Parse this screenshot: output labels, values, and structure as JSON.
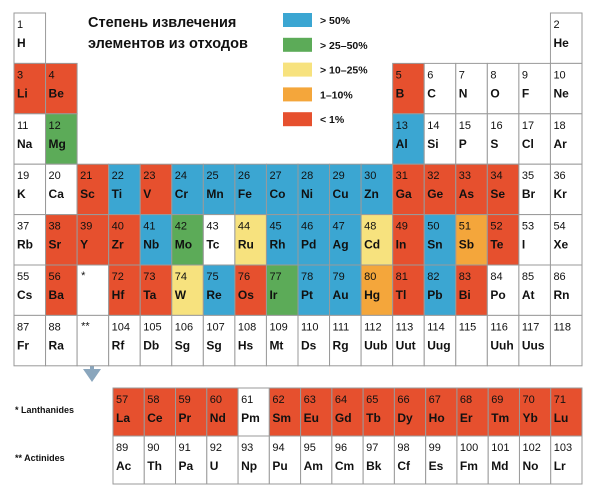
{
  "title": [
    "Степень извлечения",
    "элементов из отходов"
  ],
  "legend": [
    {
      "label": "> 50%",
      "color": "#3ba6d2"
    },
    {
      "label": "> 25–50%",
      "color": "#5cab58"
    },
    {
      "label": "> 10–25%",
      "color": "#f7e27e"
    },
    {
      "label": "1–10%",
      "color": "#f4a63b"
    },
    {
      "label": "< 1%",
      "color": "#e6502e"
    }
  ],
  "table": {
    "rows": [
      [
        {
          "number": 1,
          "symbol": "H"
        },
        null,
        null,
        null,
        null,
        null,
        null,
        null,
        null,
        null,
        null,
        null,
        null,
        null,
        null,
        null,
        null,
        {
          "number": 2,
          "symbol": "He"
        }
      ],
      [
        {
          "number": 3,
          "symbol": "Li",
          "level": 4
        },
        {
          "number": 4,
          "symbol": "Be",
          "level": 4
        },
        null,
        null,
        null,
        null,
        null,
        null,
        null,
        null,
        null,
        null,
        {
          "number": 5,
          "symbol": "B",
          "level": 4
        },
        {
          "number": 6,
          "symbol": "C"
        },
        {
          "number": 7,
          "symbol": "N"
        },
        {
          "number": 8,
          "symbol": "O"
        },
        {
          "number": 9,
          "symbol": "F"
        },
        {
          "number": 10,
          "symbol": "Ne"
        }
      ],
      [
        {
          "number": 11,
          "symbol": "Na"
        },
        {
          "number": 12,
          "symbol": "Mg",
          "level": 1
        },
        null,
        null,
        null,
        null,
        null,
        null,
        null,
        null,
        null,
        null,
        {
          "number": 13,
          "symbol": "Al",
          "level": 0
        },
        {
          "number": 14,
          "symbol": "Si"
        },
        {
          "number": 15,
          "symbol": "P"
        },
        {
          "number": 16,
          "symbol": "S"
        },
        {
          "number": 17,
          "symbol": "Cl"
        },
        {
          "number": 18,
          "symbol": "Ar"
        }
      ],
      [
        {
          "number": 19,
          "symbol": "K"
        },
        {
          "number": 20,
          "symbol": "Ca"
        },
        {
          "number": 21,
          "symbol": "Sc",
          "level": 4
        },
        {
          "number": 22,
          "symbol": "Ti",
          "level": 0
        },
        {
          "number": 23,
          "symbol": "V",
          "level": 4
        },
        {
          "number": 24,
          "symbol": "Cr",
          "level": 0
        },
        {
          "number": 25,
          "symbol": "Mn",
          "level": 0
        },
        {
          "number": 26,
          "symbol": "Fe",
          "level": 0
        },
        {
          "number": 27,
          "symbol": "Co",
          "level": 0
        },
        {
          "number": 28,
          "symbol": "Ni",
          "level": 0
        },
        {
          "number": 29,
          "symbol": "Cu",
          "level": 0
        },
        {
          "number": 30,
          "symbol": "Zn",
          "level": 0
        },
        {
          "number": 31,
          "symbol": "Ga",
          "level": 4
        },
        {
          "number": 32,
          "symbol": "Ge",
          "level": 4
        },
        {
          "number": 33,
          "symbol": "As",
          "level": 4
        },
        {
          "number": 34,
          "symbol": "Se",
          "level": 4
        },
        {
          "number": 35,
          "symbol": "Br"
        },
        {
          "number": 36,
          "symbol": "Kr"
        }
      ],
      [
        {
          "number": 37,
          "symbol": "Rb"
        },
        {
          "number": 38,
          "symbol": "Sr",
          "level": 4
        },
        {
          "number": 39,
          "symbol": "Y",
          "level": 4
        },
        {
          "number": 40,
          "symbol": "Zr",
          "level": 4
        },
        {
          "number": 41,
          "symbol": "Nb",
          "level": 0
        },
        {
          "number": 42,
          "symbol": "Mo",
          "level": 1
        },
        {
          "number": 43,
          "symbol": "Tc"
        },
        {
          "number": 44,
          "symbol": "Ru",
          "level": 2
        },
        {
          "number": 45,
          "symbol": "Rh",
          "level": 0
        },
        {
          "number": 46,
          "symbol": "Pd",
          "level": 0
        },
        {
          "number": 47,
          "symbol": "Ag",
          "level": 0
        },
        {
          "number": 48,
          "symbol": "Cd",
          "level": 2
        },
        {
          "number": 49,
          "symbol": "In",
          "level": 4
        },
        {
          "number": 50,
          "symbol": "Sn",
          "level": 0
        },
        {
          "number": 51,
          "symbol": "Sb",
          "level": 3
        },
        {
          "number": 52,
          "symbol": "Te",
          "level": 4
        },
        {
          "number": 53,
          "symbol": "I"
        },
        {
          "number": 54,
          "symbol": "Xe"
        }
      ],
      [
        {
          "number": 55,
          "symbol": "Cs"
        },
        {
          "number": 56,
          "symbol": "Ba",
          "level": 4
        },
        {
          "mark": "*"
        },
        {
          "number": 72,
          "symbol": "Hf",
          "level": 4
        },
        {
          "number": 73,
          "symbol": "Ta",
          "level": 4
        },
        {
          "number": 74,
          "symbol": "W",
          "level": 2
        },
        {
          "number": 75,
          "symbol": "Re",
          "level": 0
        },
        {
          "number": 76,
          "symbol": "Os",
          "level": 4
        },
        {
          "number": 77,
          "symbol": "Ir",
          "level": 1
        },
        {
          "number": 78,
          "symbol": "Pt",
          "level": 0
        },
        {
          "number": 79,
          "symbol": "Au",
          "level": 0
        },
        {
          "number": 80,
          "symbol": "Hg",
          "level": 3
        },
        {
          "number": 81,
          "symbol": "Tl",
          "level": 4
        },
        {
          "number": 82,
          "symbol": "Pb",
          "level": 0
        },
        {
          "number": 83,
          "symbol": "Bi",
          "level": 4
        },
        {
          "number": 84,
          "symbol": "Po"
        },
        {
          "number": 85,
          "symbol": "At"
        },
        {
          "number": 86,
          "symbol": "Rn"
        }
      ],
      [
        {
          "number": 87,
          "symbol": "Fr"
        },
        {
          "number": 88,
          "symbol": "Ra"
        },
        {
          "mark": "**"
        },
        {
          "number": 104,
          "symbol": "Rf"
        },
        {
          "number": 105,
          "symbol": "Db"
        },
        {
          "number": 106,
          "symbol": "Sg"
        },
        {
          "number": 107,
          "symbol": "Sg"
        },
        {
          "number": 108,
          "symbol": "Hs"
        },
        {
          "number": 109,
          "symbol": "Mt"
        },
        {
          "number": 110,
          "symbol": "Ds"
        },
        {
          "number": 111,
          "symbol": "Rg"
        },
        {
          "number": 112,
          "symbol": "Uub"
        },
        {
          "number": 113,
          "symbol": "Uut"
        },
        {
          "number": 114,
          "symbol": "Uug"
        },
        {
          "number": 115
        },
        {
          "number": 116,
          "symbol": "Uuh"
        },
        {
          "number": 117,
          "symbol": "Uus"
        },
        {
          "number": 118
        }
      ]
    ]
  },
  "series": [
    {
      "label": "* Lanthanides",
      "cells": [
        {
          "number": 57,
          "symbol": "La",
          "level": 4
        },
        {
          "number": 58,
          "symbol": "Ce",
          "level": 4
        },
        {
          "number": 59,
          "symbol": "Pr",
          "level": 4
        },
        {
          "number": 60,
          "symbol": "Nd",
          "level": 4
        },
        {
          "number": 61,
          "symbol": "Pm"
        },
        {
          "number": 62,
          "symbol": "Sm",
          "level": 4
        },
        {
          "number": 63,
          "symbol": "Eu",
          "level": 4
        },
        {
          "number": 64,
          "symbol": "Gd",
          "level": 4
        },
        {
          "number": 65,
          "symbol": "Tb",
          "level": 4
        },
        {
          "number": 66,
          "symbol": "Dy",
          "level": 4
        },
        {
          "number": 67,
          "symbol": "Ho",
          "level": 4
        },
        {
          "number": 68,
          "symbol": "Er",
          "level": 4
        },
        {
          "number": 69,
          "symbol": "Tm",
          "level": 4
        },
        {
          "number": 70,
          "symbol": "Yb",
          "level": 4
        },
        {
          "number": 71,
          "symbol": "Lu",
          "level": 4
        }
      ]
    },
    {
      "label": "** Actinides",
      "cells": [
        {
          "number": 89,
          "symbol": "Ac"
        },
        {
          "number": 90,
          "symbol": "Th"
        },
        {
          "number": 91,
          "symbol": "Pa"
        },
        {
          "number": 92,
          "symbol": "U"
        },
        {
          "number": 93,
          "symbol": "Np"
        },
        {
          "number": 94,
          "symbol": "Pu"
        },
        {
          "number": 95,
          "symbol": "Am"
        },
        {
          "number": 96,
          "symbol": "Cm"
        },
        {
          "number": 97,
          "symbol": "Bk"
        },
        {
          "number": 98,
          "symbol": "Cf"
        },
        {
          "number": 99,
          "symbol": "Es"
        },
        {
          "number": 100,
          "symbol": "Fm"
        },
        {
          "number": 101,
          "symbol": "Md"
        },
        {
          "number": 102,
          "symbol": "No"
        },
        {
          "number": 103,
          "symbol": "Lr"
        }
      ]
    }
  ]
}
